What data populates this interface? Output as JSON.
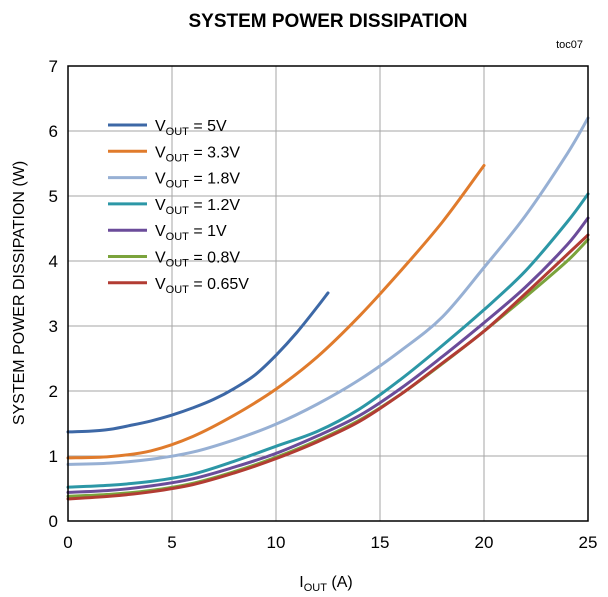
{
  "chart_data": {
    "type": "line",
    "title": "SYSTEM POWER DISSIPATION",
    "note": "toc07",
    "xlabel": {
      "main": "I",
      "sub": "OUT",
      "unit": " (A)"
    },
    "ylabel": "SYSTEM POWER DISSIPATION  (W)",
    "xlim": [
      0,
      25
    ],
    "ylim": [
      0,
      7
    ],
    "xticks": [
      0,
      5,
      10,
      15,
      20,
      25
    ],
    "yticks": [
      0,
      1,
      2,
      3,
      4,
      5,
      6,
      7
    ],
    "grid": true,
    "legend_position": "top-left",
    "series": [
      {
        "label_main": "V",
        "label_sub": "OUT",
        "label_rest": " = 5V",
        "color": "#3d68a6",
        "x": [
          0,
          1,
          2,
          3,
          4,
          5,
          6,
          7,
          8,
          9,
          10,
          11,
          12,
          12.5
        ],
        "y": [
          1.37,
          1.38,
          1.41,
          1.47,
          1.54,
          1.63,
          1.74,
          1.87,
          2.04,
          2.25,
          2.55,
          2.9,
          3.3,
          3.51
        ]
      },
      {
        "label_main": "V",
        "label_sub": "OUT",
        "label_rest": " = 3.3V",
        "color": "#e07b2c",
        "x": [
          0,
          2,
          4,
          6,
          8,
          10,
          12,
          14,
          16,
          18,
          20
        ],
        "y": [
          0.97,
          0.99,
          1.08,
          1.3,
          1.63,
          2.03,
          2.53,
          3.15,
          3.85,
          4.6,
          5.47
        ]
      },
      {
        "label_main": "V",
        "label_sub": "OUT",
        "label_rest": " = 1.8V",
        "color": "#97b0d4",
        "x": [
          0,
          2,
          4,
          6,
          8,
          10,
          12,
          14,
          16,
          18,
          20,
          22,
          24,
          25
        ],
        "y": [
          0.87,
          0.89,
          0.95,
          1.06,
          1.25,
          1.49,
          1.8,
          2.17,
          2.62,
          3.14,
          3.9,
          4.7,
          5.65,
          6.2
        ]
      },
      {
        "label_main": "V",
        "label_sub": "OUT",
        "label_rest": " = 1.2V",
        "color": "#2c97a6",
        "x": [
          0,
          2,
          4,
          6,
          8,
          10,
          12,
          14,
          16,
          18,
          20,
          22,
          24,
          25
        ],
        "y": [
          0.52,
          0.55,
          0.61,
          0.72,
          0.92,
          1.15,
          1.38,
          1.72,
          2.18,
          2.7,
          3.25,
          3.85,
          4.6,
          5.03
        ]
      },
      {
        "label_main": "V",
        "label_sub": "OUT",
        "label_rest": " = 1V",
        "color": "#6b4c9a",
        "x": [
          0,
          2,
          4,
          6,
          8,
          10,
          12,
          14,
          16,
          18,
          20,
          22,
          24,
          25
        ],
        "y": [
          0.44,
          0.47,
          0.54,
          0.65,
          0.83,
          1.04,
          1.31,
          1.62,
          2.04,
          2.53,
          3.05,
          3.6,
          4.25,
          4.66
        ]
      },
      {
        "label_main": "V",
        "label_sub": "OUT",
        "label_rest": " = 0.8V",
        "color": "#7ba33c",
        "x": [
          0,
          2,
          4,
          6,
          8,
          10,
          12,
          14,
          16,
          18,
          20,
          22,
          24,
          25
        ],
        "y": [
          0.38,
          0.41,
          0.47,
          0.58,
          0.76,
          0.98,
          1.24,
          1.55,
          1.95,
          2.42,
          2.92,
          3.45,
          4.0,
          4.33
        ]
      },
      {
        "label_main": "V",
        "label_sub": "OUT",
        "label_rest": " = 0.65V",
        "color": "#b23c33",
        "x": [
          0,
          2,
          4,
          6,
          8,
          10,
          12,
          14,
          16,
          18,
          20,
          22,
          24,
          25
        ],
        "y": [
          0.34,
          0.38,
          0.45,
          0.56,
          0.74,
          0.96,
          1.22,
          1.53,
          1.95,
          2.43,
          2.92,
          3.5,
          4.1,
          4.4
        ]
      }
    ]
  }
}
